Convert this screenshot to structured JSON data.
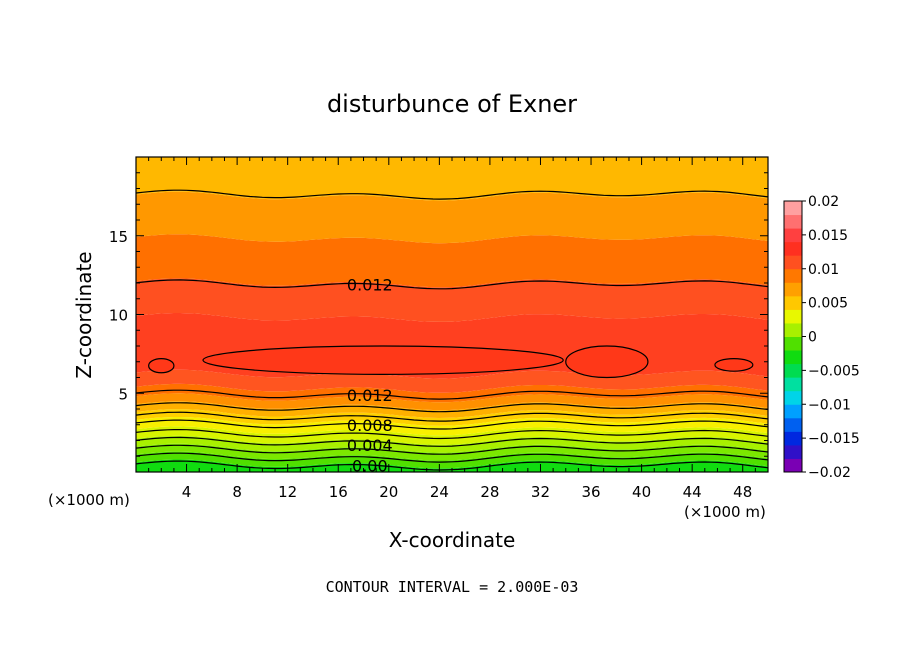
{
  "chart_data": {
    "type": "heatmap",
    "title": "disturbunce of Exner",
    "xlabel": "X-coordinate",
    "ylabel": "Z-coordinate",
    "x_unit_left": "(×1000 m)",
    "x_unit_right": "(×1000 m)",
    "footer": "CONTOUR INTERVAL = 2.000E-03",
    "xlim": [
      0,
      50
    ],
    "ylim": [
      0,
      20
    ],
    "x_ticks": [
      4,
      8,
      12,
      16,
      20,
      24,
      28,
      32,
      36,
      40,
      44,
      48
    ],
    "x_tick_labels": [
      "4",
      "8",
      "12",
      "16",
      "20",
      "24",
      "28",
      "32",
      "36",
      "40",
      "44",
      "48"
    ],
    "y_ticks": [
      5,
      10,
      15
    ],
    "y_tick_labels": [
      "5",
      "10",
      "15"
    ],
    "colorbar": {
      "range": [
        -0.02,
        0.02
      ],
      "tick_labels": [
        "0.02",
        "0.015",
        "0.01",
        "0.005",
        "0",
        "−0.005",
        "−0.01",
        "−0.015",
        "−0.02"
      ],
      "colors": [
        "#7a00b4",
        "#3010c8",
        "#0028e0",
        "#0060f0",
        "#00a0ff",
        "#00d4e8",
        "#00e0a0",
        "#00dc50",
        "#10dc10",
        "#50e000",
        "#a8f000",
        "#e8f800",
        "#ffc800",
        "#ffa000",
        "#ff7800",
        "#ff5020",
        "#ff3020",
        "#ff4040",
        "#ff7070",
        "#ffa0a0"
      ]
    },
    "contour_labels": [
      {
        "text": "0.012",
        "x": 18.5,
        "y": 11.9
      },
      {
        "text": "0.012",
        "x": 18.5,
        "y": 4.9
      },
      {
        "text": "0.008",
        "x": 18.5,
        "y": 3.0
      },
      {
        "text": "0.004",
        "x": 18.5,
        "y": 1.7
      },
      {
        "text": "0.00",
        "x": 18.5,
        "y": 0.4
      }
    ],
    "level_bands": [
      {
        "level": -0.004,
        "z": 0.5,
        "color": "#10dc10"
      },
      {
        "level": -0.002,
        "z": 1.0,
        "color": "#50e000"
      },
      {
        "level": 0.0,
        "z": 1.5,
        "color": "#7ce800"
      },
      {
        "level": 0.002,
        "z": 2.0,
        "color": "#a8f000"
      },
      {
        "level": 0.004,
        "z": 2.6,
        "color": "#d8f400"
      },
      {
        "level": 0.006,
        "z": 3.2,
        "color": "#f8f000"
      },
      {
        "level": 0.008,
        "z": 3.7,
        "color": "#ffd000"
      },
      {
        "level": 0.01,
        "z": 4.2,
        "color": "#ffb000"
      },
      {
        "level": 0.012,
        "z": 4.7,
        "color": "#ff9000"
      },
      {
        "level": 0.013,
        "z": 5.3,
        "color": "#ff7000"
      },
      {
        "level": 0.014,
        "z": 6.2,
        "color": "#ff5520"
      },
      {
        "level": 0.015,
        "z": 9.8,
        "color": "#ff4020"
      },
      {
        "level": 0.014,
        "z": 12.0,
        "color": "#ff5020"
      },
      {
        "level": 0.012,
        "z": 14.8,
        "color": "#ff7000"
      },
      {
        "level": 0.01,
        "z": 17.5,
        "color": "#ff9800"
      },
      {
        "level": 0.008,
        "z": 20.0,
        "color": "#ffb800"
      }
    ],
    "contours_z": [
      0.4,
      0.9,
      1.4,
      1.9,
      2.4,
      3.0,
      3.5,
      4.1,
      4.9,
      11.9,
      17.6
    ],
    "cells": [
      {
        "x": [
          1,
          3
        ],
        "z": [
          6.3,
          7.2
        ]
      },
      {
        "x": [
          5.3,
          33.8
        ],
        "z": [
          6.2,
          8.0
        ]
      },
      {
        "x": [
          34,
          40.5
        ],
        "z": [
          6.0,
          8.0
        ]
      },
      {
        "x": [
          45.8,
          48.8
        ],
        "z": [
          6.4,
          7.2
        ]
      }
    ]
  }
}
